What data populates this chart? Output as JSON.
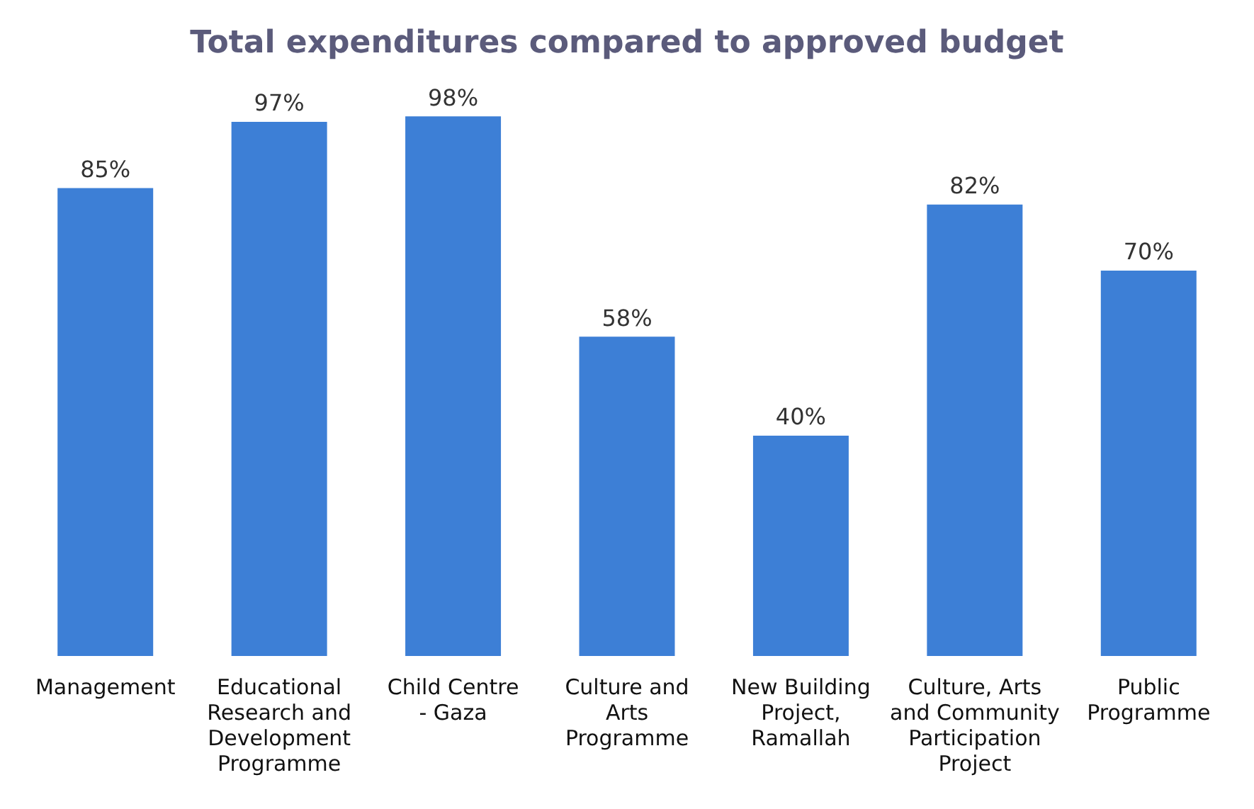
{
  "chart_data": {
    "type": "bar",
    "title": "Total expenditures compared to approved budget",
    "categories": [
      "Management",
      "Educational Research and Development Programme",
      "Child Centre - Gaza",
      "Culture and Arts Programme",
      "New Building Project, Ramallah",
      "Culture, Arts and Community Participation Project",
      "Public Programme"
    ],
    "values": [
      85,
      97,
      98,
      58,
      40,
      82,
      70
    ],
    "value_labels": [
      "85%",
      "97%",
      "98%",
      "58%",
      "40%",
      "82%",
      "70%"
    ],
    "color": "#3d7fd6",
    "grid": false,
    "legend": false
  }
}
